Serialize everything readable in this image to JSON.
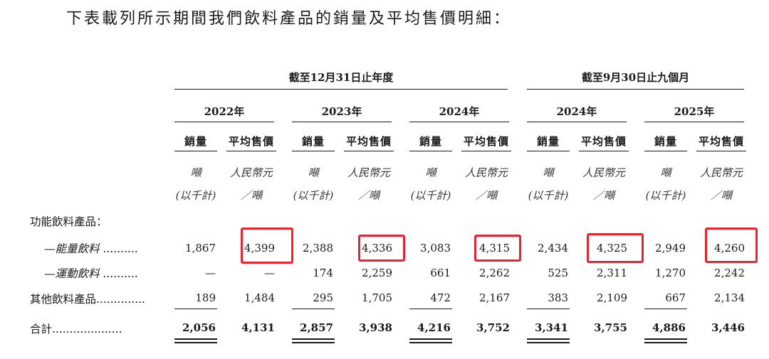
{
  "intro": "下表載列所示期間我們飲料產品的銷量及平均售價明細：",
  "groups": [
    "截至12月31日止年度",
    "截至9月30日止九個月"
  ],
  "years": [
    "2022年",
    "2023年",
    "2024年",
    "2024年",
    "2025年"
  ],
  "subheaders": {
    "volume": "銷量",
    "price": "平均售價"
  },
  "units": {
    "vol_1": "噸",
    "vol_2": "(以千計)",
    "price_1": "人民幣元",
    "price_2": "／噸"
  },
  "rows": [
    {
      "label": "功能飲料產品：",
      "values": []
    },
    {
      "label": "—能量飲料 ..........",
      "values": [
        "1,867",
        "4,399",
        "2,388",
        "4,336",
        "3,083",
        "4,315",
        "2,434",
        "4,325",
        "2,949",
        "4,260"
      ]
    },
    {
      "label": "—運動飲料 ..........",
      "values": [
        "—",
        "—",
        "174",
        "2,259",
        "661",
        "2,262",
        "525",
        "2,311",
        "1,270",
        "2,242"
      ]
    },
    {
      "label": "其他飲料產品..............",
      "values": [
        "189",
        "1,484",
        "295",
        "1,705",
        "472",
        "2,167",
        "383",
        "2,109",
        "667",
        "2,134"
      ]
    },
    {
      "label": "合計....................",
      "values": [
        "2,056",
        "4,131",
        "2,857",
        "3,938",
        "4,216",
        "3,752",
        "3,341",
        "3,755",
        "4,886",
        "3,446"
      ]
    }
  ],
  "highlight_color": "#e8232e"
}
